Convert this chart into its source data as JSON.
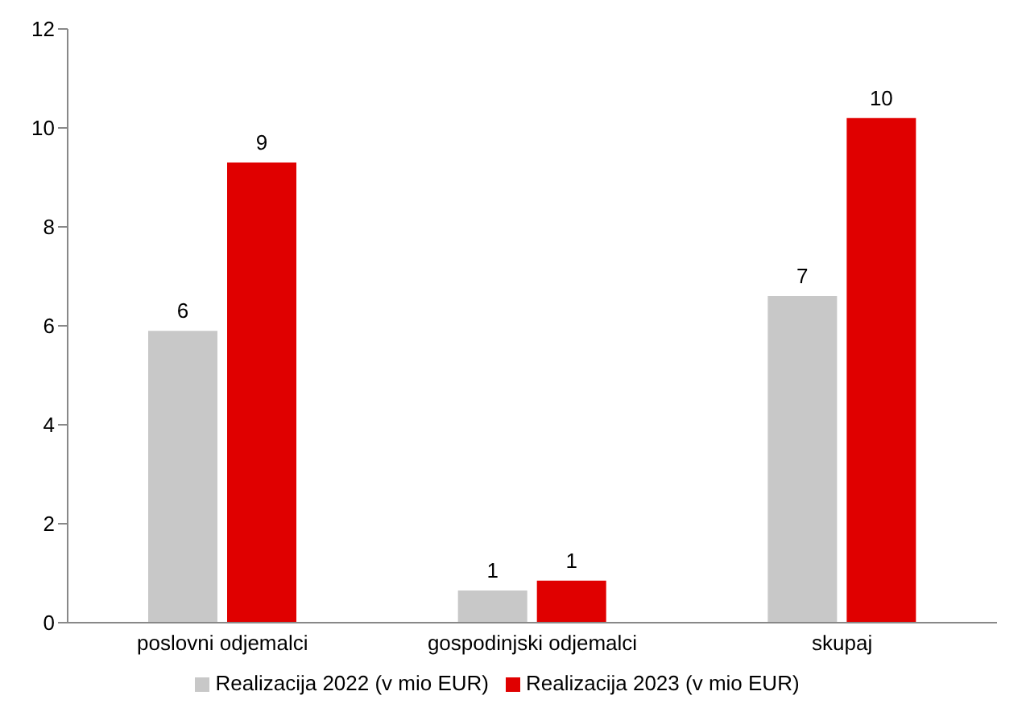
{
  "chart_data": {
    "type": "bar",
    "categories": [
      "poslovni odjemalci",
      "gospodinjski odjemalci",
      "skupaj"
    ],
    "series": [
      {
        "name": "Realizacija 2022 (v mio EUR)",
        "color": "#c8c8c8",
        "values": [
          5.9,
          0.65,
          6.6
        ],
        "value_labels": [
          "6",
          "1",
          "7"
        ]
      },
      {
        "name": "Realizacija 2023 (v mio EUR)",
        "color": "#e00000",
        "values": [
          9.3,
          0.85,
          10.2
        ],
        "value_labels": [
          "9",
          "1",
          "10"
        ]
      }
    ],
    "ylim": [
      0,
      12
    ],
    "yticks": [
      0,
      2,
      4,
      6,
      8,
      10,
      12
    ],
    "grid": false,
    "legend": "bottom"
  }
}
